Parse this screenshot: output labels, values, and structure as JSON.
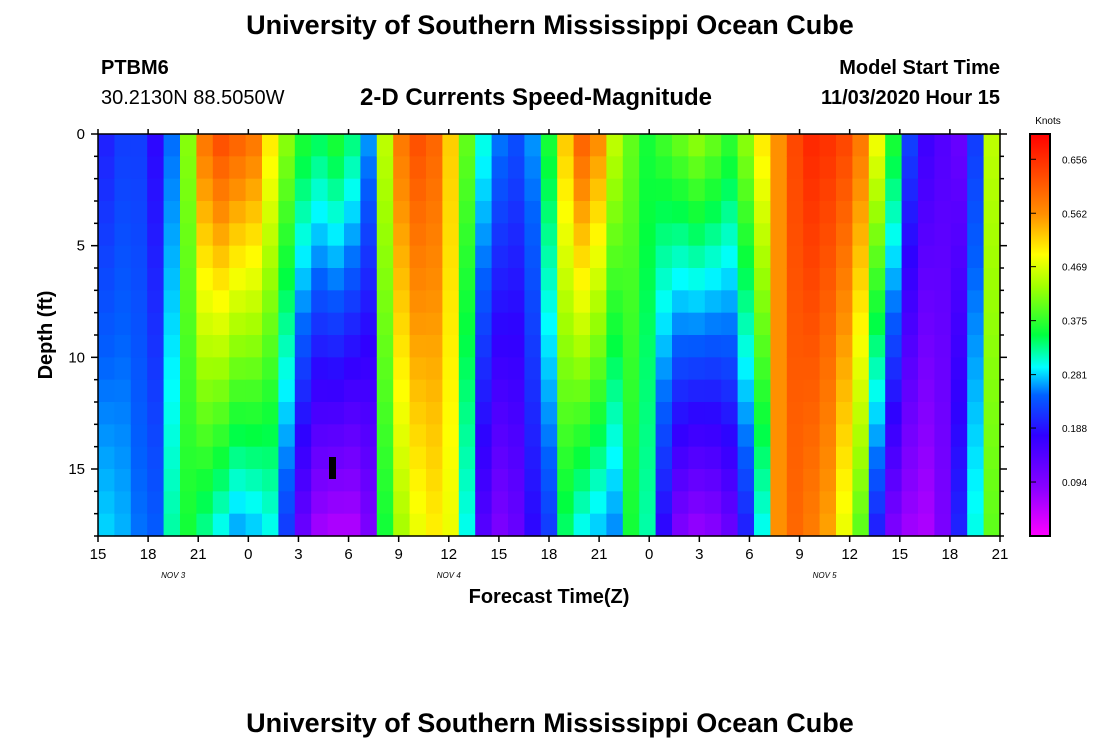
{
  "header": {
    "title": "University of Southern Mississippi Ocean Cube",
    "station": "PTBM6",
    "coordinates": "30.2130N 88.5050W",
    "chart_title": "2-D Currents Speed-Magnitude",
    "model_start_label": "Model Start Time",
    "model_start_value": "11/03/2020 Hour 15"
  },
  "footer": {
    "title": "University of Southern Mississippi Ocean Cube"
  },
  "chart_data": {
    "type": "heatmap",
    "title": "2-D Currents Speed-Magnitude",
    "xlabel": "Forecast Time(Z)",
    "ylabel": "Depth (ft)",
    "x_unit": "hours since model start (11/03/2020 15Z)",
    "xlim": [
      0,
      54
    ],
    "ylim": [
      0,
      18
    ],
    "y_inverted": true,
    "x_ticks": [
      {
        "hour": 0,
        "label": "15"
      },
      {
        "hour": 3,
        "label": "18"
      },
      {
        "hour": 6,
        "label": "21"
      },
      {
        "hour": 9,
        "label": "0"
      },
      {
        "hour": 12,
        "label": "3"
      },
      {
        "hour": 15,
        "label": "6"
      },
      {
        "hour": 18,
        "label": "9"
      },
      {
        "hour": 21,
        "label": "12"
      },
      {
        "hour": 24,
        "label": "15"
      },
      {
        "hour": 27,
        "label": "18"
      },
      {
        "hour": 30,
        "label": "21"
      },
      {
        "hour": 33,
        "label": "0"
      },
      {
        "hour": 36,
        "label": "3"
      },
      {
        "hour": 39,
        "label": "6"
      },
      {
        "hour": 42,
        "label": "9"
      },
      {
        "hour": 45,
        "label": "12"
      },
      {
        "hour": 48,
        "label": "15"
      },
      {
        "hour": 51,
        "label": "18"
      },
      {
        "hour": 54,
        "label": "21"
      }
    ],
    "day_labels": [
      {
        "hour": 4.5,
        "label": "NOV 3"
      },
      {
        "hour": 21,
        "label": "NOV 4"
      },
      {
        "hour": 43.5,
        "label": "NOV 5"
      }
    ],
    "y_ticks": [
      0,
      5,
      10,
      15
    ],
    "colorbar": {
      "unit": "Knots",
      "min": 0.0,
      "max": 0.7,
      "ticks": [
        "0.656",
        "0.562",
        "0.469",
        "0.375",
        "0.281",
        "0.188",
        "0.094"
      ]
    },
    "surface_profile_knots": [
      0.2,
      0.22,
      0.22,
      0.18,
      0.25,
      0.42,
      0.58,
      0.62,
      0.6,
      0.58,
      0.5,
      0.42,
      0.36,
      0.34,
      0.36,
      0.33,
      0.26,
      0.45,
      0.58,
      0.62,
      0.6,
      0.52,
      0.4,
      0.3,
      0.25,
      0.23,
      0.26,
      0.36,
      0.52,
      0.6,
      0.56,
      0.45,
      0.4,
      0.36,
      0.38,
      0.4,
      0.42,
      0.4,
      0.37,
      0.42,
      0.5,
      0.56,
      0.63,
      0.66,
      0.65,
      0.63,
      0.58,
      0.48,
      0.36,
      0.22,
      0.16,
      0.14,
      0.12,
      0.22,
      0.45
    ],
    "bottom_profile_knots": [
      0.28,
      0.27,
      0.25,
      0.24,
      0.32,
      0.36,
      0.33,
      0.3,
      0.27,
      0.28,
      0.3,
      0.22,
      0.12,
      0.07,
      0.06,
      0.06,
      0.1,
      0.36,
      0.44,
      0.48,
      0.5,
      0.48,
      0.3,
      0.14,
      0.1,
      0.12,
      0.18,
      0.22,
      0.34,
      0.3,
      0.28,
      0.26,
      0.36,
      0.32,
      0.18,
      0.1,
      0.08,
      0.09,
      0.12,
      0.2,
      0.3,
      0.56,
      0.6,
      0.58,
      0.55,
      0.48,
      0.4,
      0.2,
      0.1,
      0.07,
      0.06,
      0.1,
      0.2,
      0.3,
      0.4
    ]
  }
}
